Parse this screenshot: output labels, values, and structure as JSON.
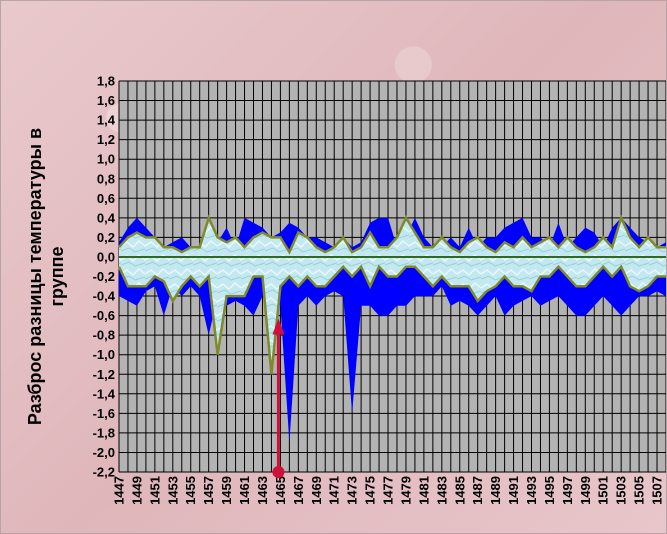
{
  "chart_data": {
    "type": "area",
    "title": "",
    "ylabel_lines": [
      "Разброс разницы температуры в",
      "группе"
    ],
    "xlabel": "",
    "ylim": [
      -2.2,
      1.8
    ],
    "y_ticks": [
      "1,8",
      "1,6",
      "1,4",
      "1,2",
      "1,0",
      "0,8",
      "0,6",
      "0,4",
      "0,2",
      "0,0",
      "-0,2",
      "-0,4",
      "-0,6",
      "-0,8",
      "-1,0",
      "-1,2",
      "-1,4",
      "-1,6",
      "-1,8",
      "-2,0",
      "-2,2"
    ],
    "x_ticks": [
      "1447",
      "1449",
      "1451",
      "1453",
      "1455",
      "1457",
      "1459",
      "1461",
      "1463",
      "1465",
      "1467",
      "1469",
      "1471",
      "1473",
      "1475",
      "1477",
      "1479",
      "1481",
      "1483",
      "1485",
      "1487",
      "1489",
      "1491",
      "1493",
      "1495",
      "1497",
      "1499",
      "1501",
      "1503",
      "1505",
      "1507"
    ],
    "x_start": 1447,
    "x_end": 1508,
    "grid": true,
    "legend": "none",
    "colors": {
      "plot_bg": "#b3b3b3",
      "grid": "#000000",
      "blue": "#0000ff",
      "band_fill": "#bfe6ee",
      "band_stroke": "#7f8a2a",
      "arrow": "#d0103c"
    },
    "series": [
      {
        "values_upper": [
          0.15,
          0.3,
          0.4,
          0.3,
          0.2,
          0.1,
          0.15,
          0.2,
          0.1,
          0.1,
          0.1,
          0.15,
          0.3,
          0.1,
          0.4,
          0.35,
          0.3,
          0.2,
          0.25,
          0.35,
          0.3,
          0.2,
          0.2,
          0.15,
          0.1,
          0.2,
          0.1,
          0.15,
          0.35,
          0.4,
          0.4,
          0.1,
          0.2,
          0.4,
          0.2,
          0.1,
          0.1,
          0.2,
          0.1,
          0.3,
          0.1,
          0.2,
          0.2,
          0.3,
          0.35,
          0.4,
          0.2,
          0.2,
          0.1,
          0.35,
          0.1,
          0.2,
          0.3,
          0.25,
          0.1,
          0.3,
          0.4,
          0.3,
          0.2,
          0.15,
          0.1,
          0.15
        ],
        "values_lower": [
          -0.4,
          -0.45,
          -0.5,
          -0.35,
          -0.3,
          -0.6,
          -0.3,
          -0.4,
          -0.3,
          -0.4,
          -0.8,
          -0.4,
          -0.5,
          -0.45,
          -0.5,
          -0.6,
          -0.4,
          -0.35,
          -0.5,
          -1.9,
          -0.5,
          -0.4,
          -0.5,
          -0.4,
          -0.35,
          -0.4,
          -1.6,
          -0.5,
          -0.5,
          -0.6,
          -0.6,
          -0.5,
          -0.5,
          -0.4,
          -0.4,
          -0.4,
          -0.3,
          -0.5,
          -0.45,
          -0.5,
          -0.6,
          -0.5,
          -0.4,
          -0.6,
          -0.5,
          -0.45,
          -0.4,
          -0.5,
          -0.45,
          -0.4,
          -0.5,
          -0.6,
          -0.6,
          -0.5,
          -0.4,
          -0.5,
          -0.6,
          -0.5,
          -0.4,
          -0.4,
          -0.35,
          -0.4
        ]
      },
      {
        "values_upper": [
          0.1,
          0.2,
          0.25,
          0.2,
          0.2,
          0.1,
          0.1,
          0.05,
          0.1,
          0.1,
          0.4,
          0.2,
          0.15,
          0.2,
          0.1,
          0.2,
          0.25,
          0.2,
          0.2,
          0.05,
          0.25,
          0.2,
          0.1,
          0.05,
          0.1,
          0.2,
          0.05,
          0.1,
          0.25,
          0.1,
          0.1,
          0.2,
          0.4,
          0.25,
          0.1,
          0.1,
          0.2,
          0.1,
          0.05,
          0.15,
          0.2,
          0.1,
          0.05,
          0.15,
          0.1,
          0.2,
          0.1,
          0.15,
          0.2,
          0.1,
          0.2,
          0.1,
          0.05,
          0.1,
          0.2,
          0.1,
          0.4,
          0.2,
          0.1,
          0.2,
          0.1,
          0.1
        ],
        "values_lower": [
          -0.1,
          -0.3,
          -0.3,
          -0.3,
          -0.2,
          -0.25,
          -0.45,
          -0.3,
          -0.2,
          -0.3,
          -0.2,
          -1.0,
          -0.4,
          -0.4,
          -0.4,
          -0.2,
          -0.2,
          -1.2,
          -0.3,
          -0.2,
          -0.3,
          -0.2,
          -0.3,
          -0.3,
          -0.2,
          -0.1,
          -0.2,
          -0.1,
          -0.3,
          -0.1,
          -0.2,
          -0.2,
          -0.1,
          -0.1,
          -0.2,
          -0.3,
          -0.2,
          -0.3,
          -0.3,
          -0.3,
          -0.45,
          -0.35,
          -0.3,
          -0.2,
          -0.3,
          -0.3,
          -0.35,
          -0.2,
          -0.2,
          -0.1,
          -0.2,
          -0.3,
          -0.3,
          -0.2,
          -0.1,
          -0.2,
          -0.1,
          -0.3,
          -0.35,
          -0.3,
          -0.2,
          -0.2
        ]
      }
    ],
    "annotation": {
      "type": "arrow",
      "x": 1465,
      "from_y": -2.2,
      "to_y": -0.65
    }
  }
}
